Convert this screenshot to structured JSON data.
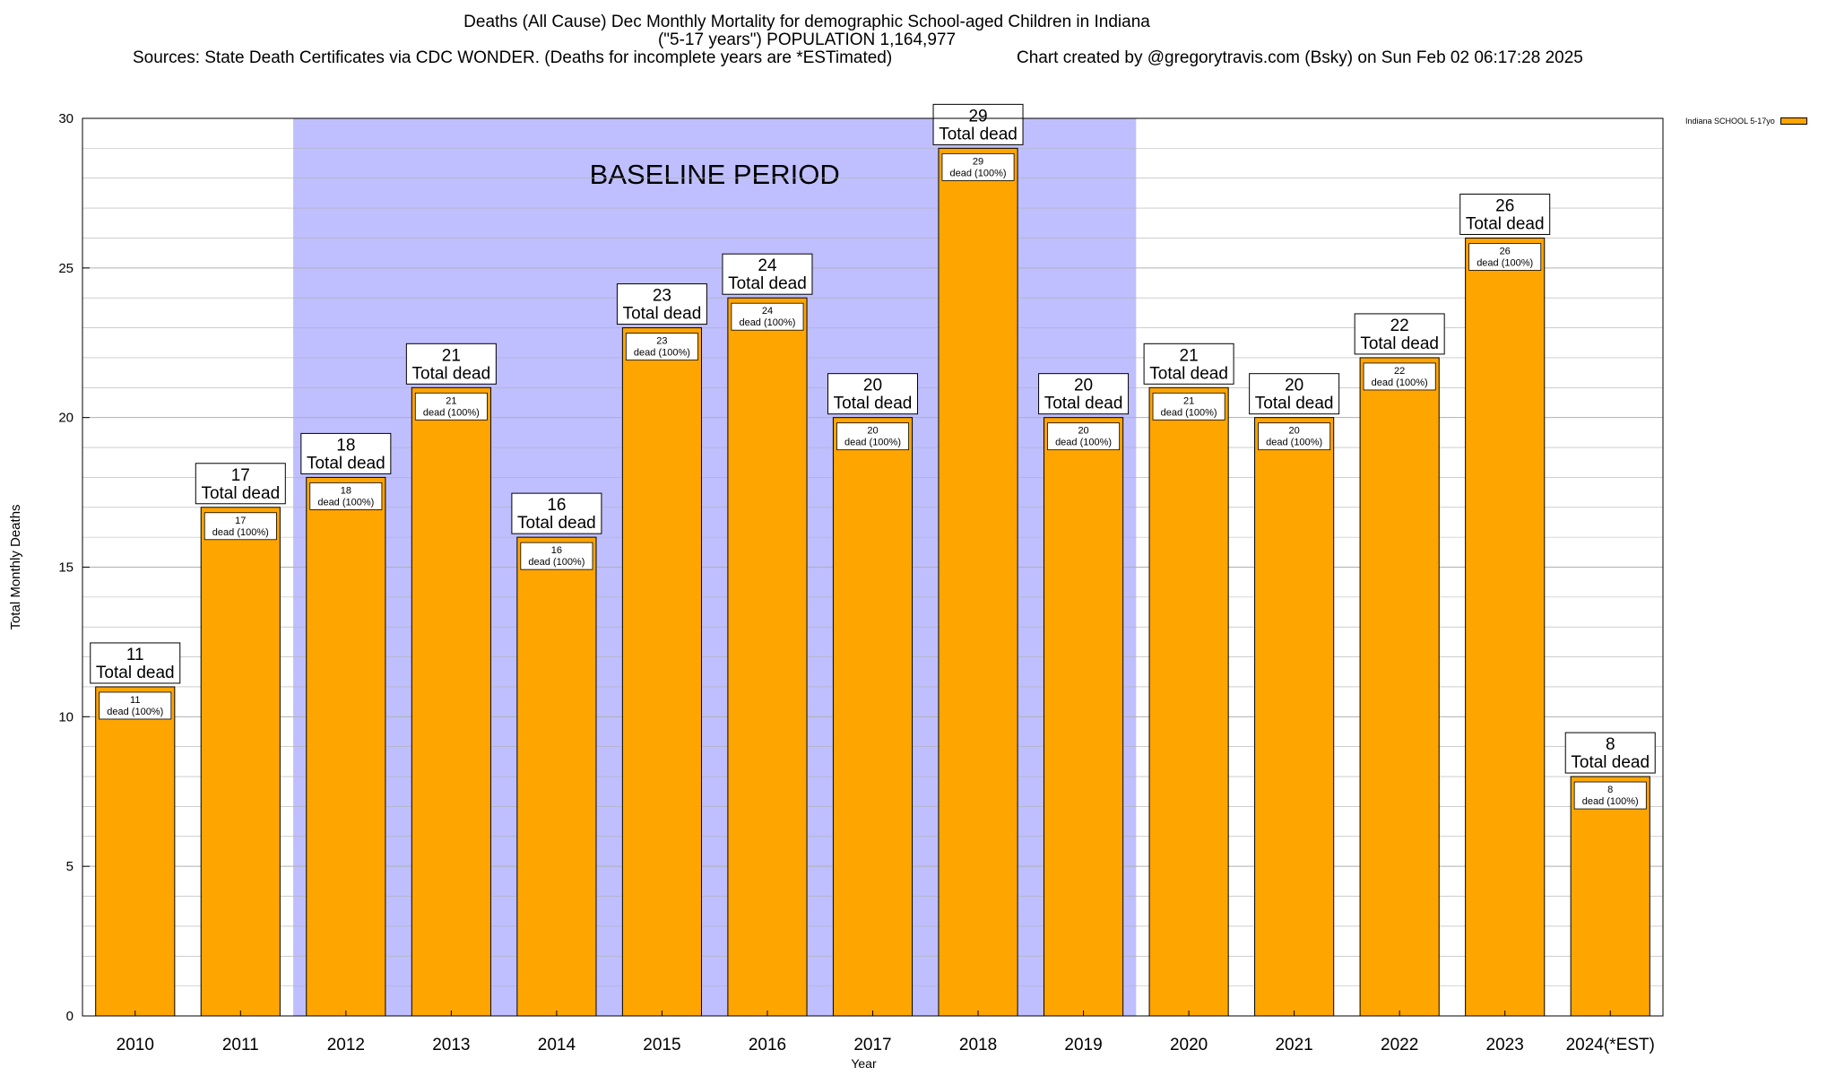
{
  "title_lines": [
    "Deaths (All Cause) Dec Monthly Mortality for demographic School-aged Children in Indiana",
    "(\"5-17 years\") POPULATION 1,164,977"
  ],
  "sources_text": "Sources: State Death Certificates via CDC WONDER. (Deaths for incomplete years are *ESTimated)",
  "credit_text": "Chart created by @gregorytravis.com (Bsky) on Sun Feb 02 06:17:28 2025",
  "colors": {
    "bar": "#ffa500",
    "baseline": "#bfbfff",
    "grid": "#b0b0b0"
  },
  "chart_data": {
    "type": "bar",
    "categories": [
      "2010",
      "2011",
      "2012",
      "2013",
      "2014",
      "2015",
      "2016",
      "2017",
      "2018",
      "2019",
      "2020",
      "2021",
      "2022",
      "2023",
      "2024(*EST)"
    ],
    "series": [
      {
        "name": "Indiana SCHOOL 5-17yo",
        "values": [
          11,
          17,
          18,
          21,
          16,
          23,
          24,
          20,
          29,
          20,
          21,
          20,
          22,
          26,
          8
        ]
      }
    ],
    "bar_top_label": "Total dead",
    "bar_inner_label": "dead (100%)",
    "xlabel": "Year",
    "ylabel": "Total Monthly Deaths",
    "ylim": [
      0,
      30
    ],
    "yticks": [
      0,
      5,
      10,
      15,
      20,
      25,
      30
    ],
    "grid": true,
    "legend_position": "top-right",
    "annotation": {
      "text": "BASELINE PERIOD",
      "from": "2012",
      "to": "2019"
    }
  }
}
